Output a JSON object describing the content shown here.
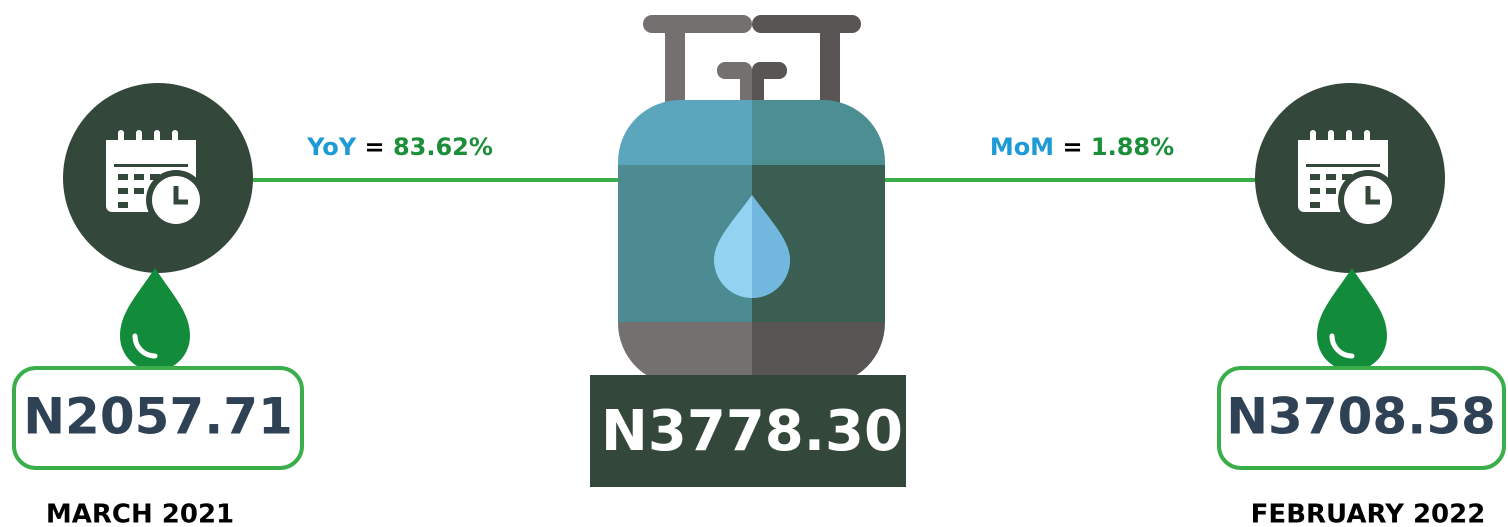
{
  "left": {
    "price": "N2057.71",
    "date": "MARCH 2021"
  },
  "center": {
    "price": "N3778.30"
  },
  "right": {
    "price": "N3708.58",
    "date": "FEBRUARY 2022"
  },
  "yoy": {
    "label": "YoY",
    "equals": "=",
    "value": "83.62%"
  },
  "mom": {
    "label": "MoM",
    "equals": "=",
    "value": "1.88%"
  }
}
